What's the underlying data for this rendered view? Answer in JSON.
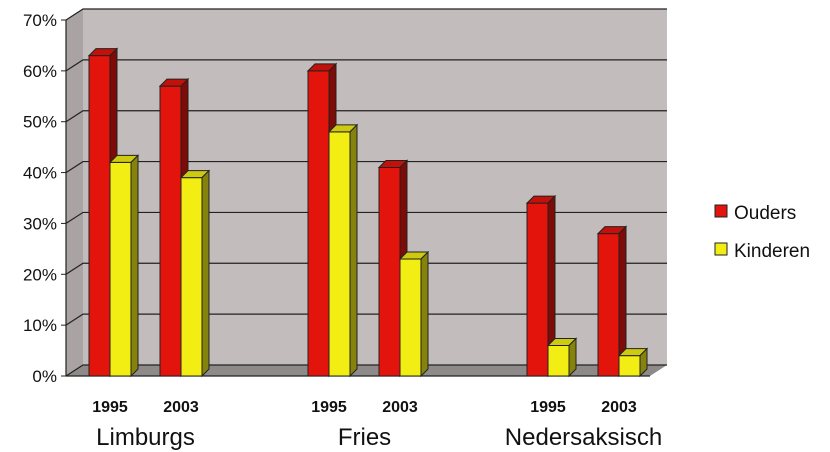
{
  "chart_data": {
    "type": "bar",
    "style": "3d-clustered",
    "groups": [
      {
        "name": "Limburgs",
        "years": [
          "1995",
          "2003"
        ]
      },
      {
        "name": "Fries",
        "years": [
          "1995",
          "2003"
        ]
      },
      {
        "name": "Nedersaksisch",
        "years": [
          "1995",
          "2003"
        ]
      }
    ],
    "categories": [
      "Limburgs 1995",
      "Limburgs 2003",
      "Fries 1995",
      "Fries 2003",
      "Nedersaksisch 1995",
      "Nedersaksisch 2003"
    ],
    "series": [
      {
        "name": "Ouders",
        "color": "#e3140c",
        "values": [
          63,
          57,
          60,
          41,
          34,
          28
        ]
      },
      {
        "name": "Kinderen",
        "color": "#f2ee14",
        "values": [
          42,
          39,
          48,
          23,
          6,
          4
        ]
      }
    ],
    "ylim": [
      0,
      70
    ],
    "yticks": [
      "0%",
      "10%",
      "20%",
      "30%",
      "40%",
      "50%",
      "60%",
      "70%"
    ],
    "grid": true,
    "legend_position": "right",
    "colors": {
      "wall": "#c2bcbc",
      "floor": "#8f8a8a",
      "grid": "#222222"
    }
  }
}
